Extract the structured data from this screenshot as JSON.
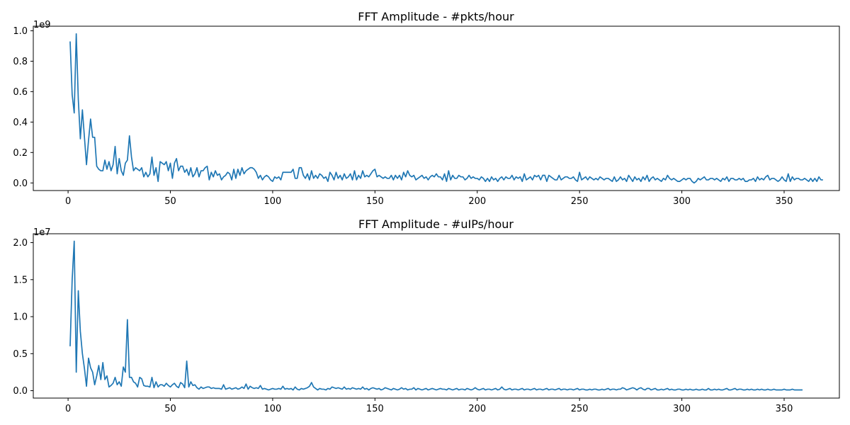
{
  "chart_data": [
    {
      "type": "line",
      "title": "FFT Amplitude - #pkts/hour",
      "offset_label": "1e9",
      "xlim": [
        -17,
        377
      ],
      "ylim": [
        -0.05,
        1.03
      ],
      "x_ticks": [
        0,
        50,
        100,
        150,
        200,
        250,
        300,
        350
      ],
      "y_ticks": [
        0.0,
        0.2,
        0.4,
        0.6,
        0.8,
        1.0
      ],
      "y_tick_labels": [
        "0.0",
        "0.2",
        "0.4",
        "0.6",
        "0.8",
        "1.0"
      ],
      "grid": false,
      "color": "#1f77b4",
      "x_start": 1,
      "x_step": 1,
      "values_scale": "x1e9",
      "values": [
        0.93,
        0.58,
        0.46,
        0.98,
        0.55,
        0.29,
        0.48,
        0.3,
        0.12,
        0.28,
        0.42,
        0.3,
        0.3,
        0.11,
        0.09,
        0.08,
        0.08,
        0.15,
        0.09,
        0.14,
        0.08,
        0.12,
        0.24,
        0.06,
        0.16,
        0.08,
        0.05,
        0.13,
        0.15,
        0.31,
        0.17,
        0.08,
        0.1,
        0.09,
        0.08,
        0.1,
        0.04,
        0.07,
        0.04,
        0.06,
        0.17,
        0.05,
        0.1,
        0.01,
        0.14,
        0.13,
        0.12,
        0.14,
        0.08,
        0.13,
        0.03,
        0.13,
        0.16,
        0.08,
        0.11,
        0.11,
        0.07,
        0.09,
        0.05,
        0.1,
        0.04,
        0.06,
        0.1,
        0.04,
        0.08,
        0.08,
        0.1,
        0.11,
        0.02,
        0.07,
        0.04,
        0.08,
        0.05,
        0.06,
        0.02,
        0.04,
        0.05,
        0.07,
        0.06,
        0.02,
        0.09,
        0.03,
        0.09,
        0.05,
        0.1,
        0.06,
        0.08,
        0.09,
        0.1,
        0.1,
        0.09,
        0.07,
        0.03,
        0.05,
        0.02,
        0.04,
        0.05,
        0.04,
        0.02,
        0.01,
        0.04,
        0.03,
        0.04,
        0.02,
        0.07,
        0.07,
        0.07,
        0.07,
        0.07,
        0.09,
        0.03,
        0.03,
        0.1,
        0.1,
        0.05,
        0.03,
        0.06,
        0.02,
        0.08,
        0.03,
        0.05,
        0.03,
        0.06,
        0.05,
        0.03,
        0.04,
        0.01,
        0.07,
        0.05,
        0.02,
        0.07,
        0.03,
        0.05,
        0.02,
        0.06,
        0.03,
        0.04,
        0.06,
        0.02,
        0.08,
        0.02,
        0.05,
        0.03,
        0.08,
        0.04,
        0.05,
        0.04,
        0.06,
        0.08,
        0.09,
        0.04,
        0.05,
        0.04,
        0.03,
        0.04,
        0.03,
        0.03,
        0.05,
        0.02,
        0.05,
        0.03,
        0.05,
        0.02,
        0.07,
        0.04,
        0.08,
        0.05,
        0.04,
        0.05,
        0.02,
        0.03,
        0.04,
        0.05,
        0.03,
        0.04,
        0.02,
        0.04,
        0.05,
        0.04,
        0.06,
        0.04,
        0.04,
        0.02,
        0.06,
        0.01,
        0.08,
        0.02,
        0.05,
        0.03,
        0.03,
        0.05,
        0.04,
        0.04,
        0.02,
        0.03,
        0.05,
        0.03,
        0.04,
        0.03,
        0.03,
        0.02,
        0.04,
        0.03,
        0.01,
        0.03,
        0.01,
        0.04,
        0.02,
        0.03,
        0.01,
        0.03,
        0.04,
        0.02,
        0.04,
        0.03,
        0.03,
        0.05,
        0.02,
        0.04,
        0.03,
        0.04,
        0.01,
        0.06,
        0.02,
        0.03,
        0.04,
        0.02,
        0.05,
        0.04,
        0.05,
        0.02,
        0.05,
        0.05,
        0.01,
        0.05,
        0.04,
        0.03,
        0.02,
        0.02,
        0.05,
        0.02,
        0.03,
        0.04,
        0.04,
        0.03,
        0.03,
        0.04,
        0.02,
        0.01,
        0.07,
        0.02,
        0.03,
        0.04,
        0.02,
        0.04,
        0.03,
        0.02,
        0.03,
        0.02,
        0.04,
        0.03,
        0.02,
        0.03,
        0.03,
        0.02,
        0.01,
        0.04,
        0.01,
        0.02,
        0.04,
        0.02,
        0.03,
        0.01,
        0.05,
        0.03,
        0.01,
        0.04,
        0.02,
        0.03,
        0.01,
        0.04,
        0.02,
        0.05,
        0.01,
        0.03,
        0.04,
        0.02,
        0.03,
        0.02,
        0.01,
        0.03,
        0.02,
        0.05,
        0.03,
        0.02,
        0.03,
        0.02,
        0.01,
        0.01,
        0.02,
        0.03,
        0.02,
        0.03,
        0.03,
        0.01,
        0.0,
        0.01,
        0.03,
        0.02,
        0.03,
        0.04,
        0.02,
        0.02,
        0.03,
        0.03,
        0.02,
        0.03,
        0.02,
        0.01,
        0.03,
        0.02,
        0.04,
        0.01,
        0.03,
        0.03,
        0.02,
        0.02,
        0.03,
        0.02,
        0.03,
        0.01,
        0.01,
        0.02,
        0.02,
        0.03,
        0.01,
        0.04,
        0.02,
        0.03,
        0.02,
        0.04,
        0.05,
        0.02,
        0.03,
        0.03,
        0.02,
        0.01,
        0.02,
        0.04,
        0.02,
        0.01,
        0.06,
        0.01,
        0.04,
        0.02,
        0.03,
        0.03,
        0.02,
        0.02,
        0.03,
        0.02,
        0.01,
        0.03,
        0.01,
        0.03,
        0.01,
        0.04,
        0.02,
        0.02
      ]
    },
    {
      "type": "line",
      "title": "FFT Amplitude - #uIPs/hour",
      "offset_label": "1e7",
      "xlim": [
        -17,
        377
      ],
      "ylim": [
        -1.0,
        21.2
      ],
      "x_ticks": [
        0,
        50,
        100,
        150,
        200,
        250,
        300,
        350
      ],
      "y_ticks": [
        0,
        5,
        10,
        15,
        20
      ],
      "y_tick_labels": [
        "0.0",
        "0.5",
        "1.0",
        "1.5",
        "2.0"
      ],
      "grid": false,
      "color": "#1f77b4",
      "x_start": 1,
      "x_step": 1,
      "values_scale": "x1e6",
      "values": [
        6.0,
        15.0,
        20.2,
        2.5,
        13.5,
        8.0,
        5.0,
        3.0,
        0.6,
        4.4,
        3.1,
        2.5,
        0.8,
        2.0,
        3.4,
        1.5,
        3.8,
        1.5,
        2.0,
        0.5,
        0.7,
        1.0,
        1.8,
        0.8,
        1.2,
        0.6,
        3.2,
        2.5,
        9.6,
        1.8,
        1.8,
        1.2,
        1.0,
        0.5,
        1.8,
        1.6,
        0.7,
        0.6,
        0.6,
        0.5,
        1.8,
        0.4,
        1.2,
        0.5,
        0.8,
        0.8,
        0.6,
        1.0,
        0.7,
        0.5,
        0.8,
        1.0,
        0.6,
        0.4,
        1.1,
        0.9,
        0.4,
        4.0,
        0.5,
        1.2,
        0.7,
        0.8,
        0.4,
        0.2,
        0.5,
        0.3,
        0.4,
        0.5,
        0.5,
        0.3,
        0.4,
        0.3,
        0.3,
        0.3,
        0.2,
        0.8,
        0.2,
        0.3,
        0.4,
        0.2,
        0.3,
        0.4,
        0.2,
        0.3,
        0.5,
        0.3,
        0.9,
        0.2,
        0.6,
        0.4,
        0.3,
        0.4,
        0.3,
        0.7,
        0.2,
        0.3,
        0.2,
        0.1,
        0.2,
        0.3,
        0.2,
        0.2,
        0.3,
        0.2,
        0.6,
        0.2,
        0.3,
        0.2,
        0.3,
        0.1,
        0.5,
        0.2,
        0.1,
        0.3,
        0.2,
        0.3,
        0.4,
        0.6,
        1.1,
        0.5,
        0.3,
        0.1,
        0.3,
        0.2,
        0.2,
        0.1,
        0.3,
        0.2,
        0.5,
        0.4,
        0.3,
        0.4,
        0.3,
        0.2,
        0.5,
        0.2,
        0.3,
        0.2,
        0.4,
        0.3,
        0.2,
        0.3,
        0.2,
        0.5,
        0.2,
        0.3,
        0.1,
        0.3,
        0.4,
        0.3,
        0.2,
        0.3,
        0.1,
        0.2,
        0.4,
        0.3,
        0.2,
        0.1,
        0.3,
        0.2,
        0.1,
        0.2,
        0.4,
        0.2,
        0.3,
        0.1,
        0.2,
        0.2,
        0.4,
        0.1,
        0.3,
        0.2,
        0.1,
        0.2,
        0.3,
        0.1,
        0.2,
        0.3,
        0.2,
        0.1,
        0.2,
        0.3,
        0.2,
        0.2,
        0.1,
        0.3,
        0.2,
        0.1,
        0.2,
        0.3,
        0.1,
        0.2,
        0.2,
        0.1,
        0.3,
        0.2,
        0.1,
        0.2,
        0.4,
        0.2,
        0.1,
        0.2,
        0.3,
        0.1,
        0.2,
        0.2,
        0.1,
        0.2,
        0.3,
        0.1,
        0.2,
        0.5,
        0.2,
        0.1,
        0.2,
        0.3,
        0.1,
        0.2,
        0.2,
        0.1,
        0.2,
        0.3,
        0.1,
        0.2,
        0.2,
        0.1,
        0.2,
        0.3,
        0.1,
        0.2,
        0.2,
        0.1,
        0.2,
        0.3,
        0.1,
        0.2,
        0.2,
        0.1,
        0.2,
        0.3,
        0.1,
        0.2,
        0.2,
        0.1,
        0.2,
        0.2,
        0.1,
        0.2,
        0.3,
        0.1,
        0.2,
        0.2,
        0.1,
        0.1,
        0.2,
        0.1,
        0.2,
        0.2,
        0.1,
        0.1,
        0.2,
        0.1,
        0.2,
        0.3,
        0.1,
        0.2,
        0.2,
        0.1,
        0.2,
        0.2,
        0.4,
        0.3,
        0.1,
        0.2,
        0.3,
        0.4,
        0.3,
        0.1,
        0.3,
        0.4,
        0.2,
        0.1,
        0.3,
        0.3,
        0.1,
        0.2,
        0.3,
        0.1,
        0.1,
        0.2,
        0.1,
        0.2,
        0.3,
        0.1,
        0.2,
        0.1,
        0.1,
        0.2,
        0.2,
        0.1,
        0.1,
        0.2,
        0.1,
        0.2,
        0.1,
        0.1,
        0.2,
        0.1,
        0.1,
        0.2,
        0.1,
        0.1,
        0.3,
        0.1,
        0.1,
        0.2,
        0.1,
        0.2,
        0.1,
        0.1,
        0.2,
        0.3,
        0.1,
        0.1,
        0.2,
        0.3,
        0.1,
        0.2,
        0.2,
        0.1,
        0.1,
        0.2,
        0.1,
        0.2,
        0.1,
        0.1,
        0.2,
        0.1,
        0.2,
        0.1,
        0.1,
        0.2,
        0.1,
        0.1,
        0.2,
        0.1,
        0.1,
        0.1,
        0.1,
        0.2,
        0.1,
        0.1,
        0.1,
        0.2,
        0.1,
        0.1,
        0.1,
        0.1,
        0.1
      ]
    }
  ]
}
